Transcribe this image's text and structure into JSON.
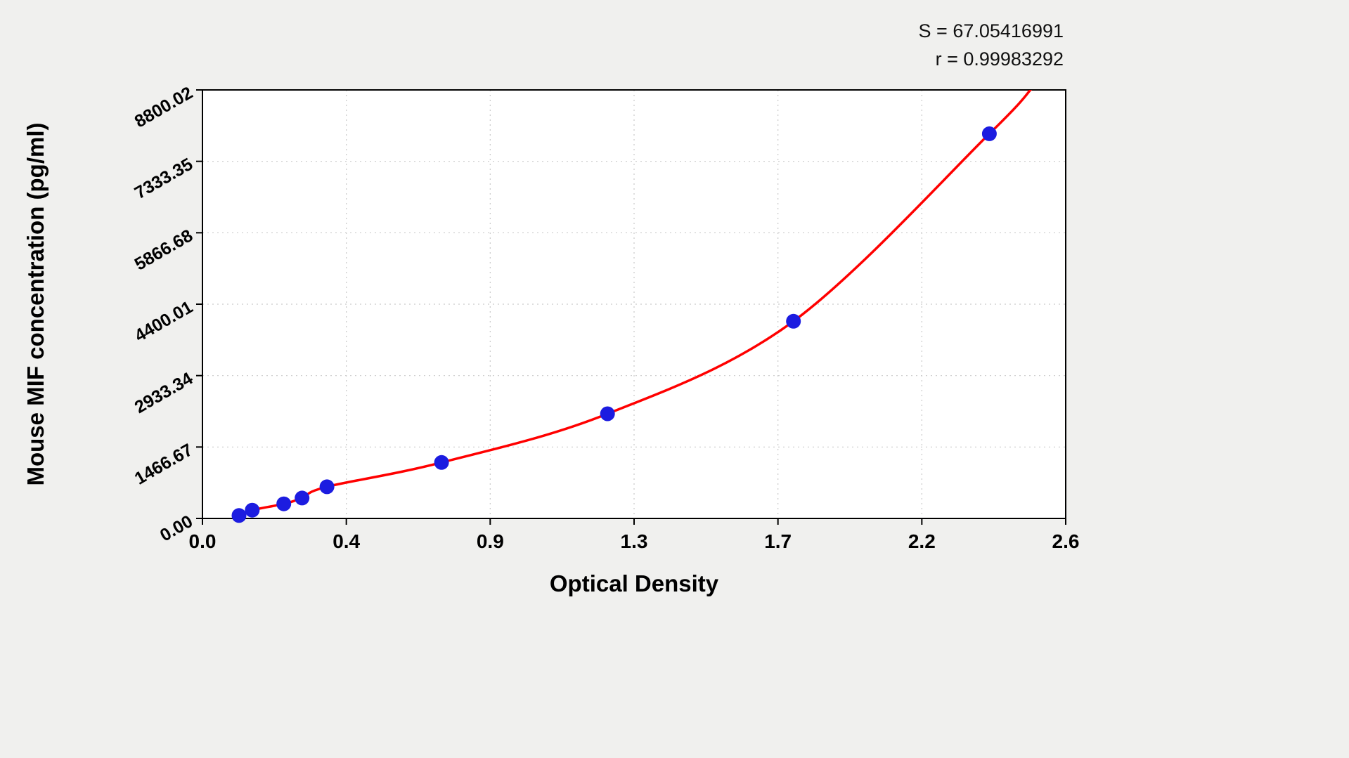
{
  "annotations": {
    "s_label": "S = 67.05416991",
    "r_label": "r = 0.99983292"
  },
  "chart_data": {
    "type": "scatter",
    "title": "",
    "xlabel": "Optical Density",
    "ylabel": "Mouse MIF concentration (pg/ml)",
    "xlim": [
      0,
      2.6
    ],
    "ylim": [
      0,
      8800.02
    ],
    "grid": true,
    "x_ticks": [
      "0.0",
      "0.4",
      "0.9",
      "1.3",
      "1.7",
      "2.2",
      "2.6"
    ],
    "y_ticks": [
      "0.00",
      "1466.67",
      "2933.34",
      "4400.01",
      "5866.68",
      "7333.35",
      "8800.02"
    ],
    "series": [
      {
        "name": "standard-points",
        "type": "scatter",
        "color": "#1c1ce0",
        "points": [
          [
            0.11,
            60
          ],
          [
            0.15,
            170
          ],
          [
            0.245,
            300
          ],
          [
            0.3,
            420
          ],
          [
            0.375,
            650
          ],
          [
            0.72,
            1150
          ],
          [
            1.22,
            2150
          ],
          [
            1.78,
            4050
          ],
          [
            2.37,
            7900
          ]
        ]
      }
    ],
    "curve": {
      "name": "fitted-regression-curve",
      "color": "#ff0000",
      "start": [
        0.085,
        -60
      ],
      "end": [
        2.5,
        8850
      ]
    },
    "colors": {
      "page_bg": "#f0f0ee",
      "plot_bg": "#ffffff",
      "grid": "#c9c9c9",
      "axis": "#000000"
    },
    "legend_position": "none"
  }
}
